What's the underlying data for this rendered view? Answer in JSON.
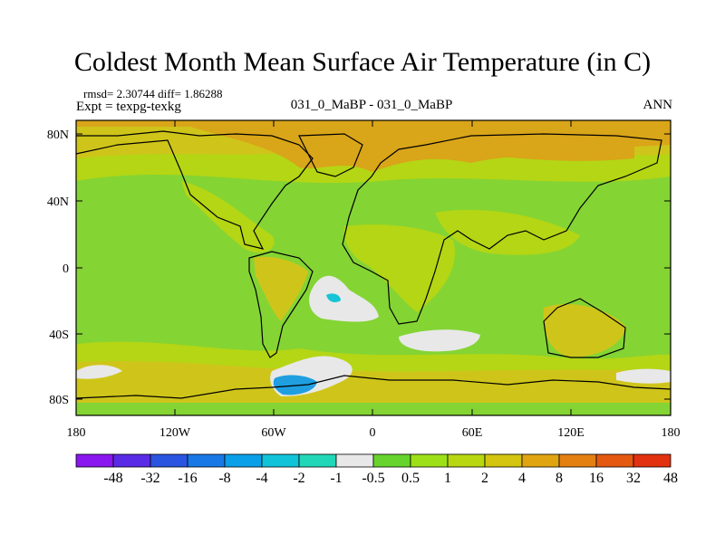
{
  "header": {
    "title": "Coldest Month Mean Surface Air Temperature (in C)",
    "stats": "rmsd= 2.30744 diff= 1.86288",
    "experiment": "Expt = texpg-texkg",
    "comparison": "031_0_MaBP - 031_0_MaBP",
    "season": "ANN"
  },
  "axes": {
    "lat_labels": [
      "80N",
      "40N",
      "0",
      "40S",
      "80S"
    ],
    "lon_labels": [
      "180",
      "120W",
      "60W",
      "0",
      "60E",
      "120E",
      "180"
    ]
  },
  "colorbar": {
    "labels": [
      "-48",
      "-32",
      "-16",
      "-8",
      "-4",
      "-2",
      "-1",
      "-0.5",
      "0.5",
      "1",
      "2",
      "4",
      "8",
      "16",
      "32",
      "48"
    ],
    "colors": [
      "#8a17ee",
      "#5a2be6",
      "#2a55e0",
      "#1878e6",
      "#0aa0e8",
      "#11c3d8",
      "#20d8b8",
      "#e8e8e8",
      "#66d42c",
      "#9ee017",
      "#b8d70e",
      "#d2c40f",
      "#e0a410",
      "#e48010",
      "#e45810",
      "#e23110"
    ]
  },
  "map_colors": {
    "ocean": "#84d434",
    "warm": "#b4d614",
    "warmer": "#cfc51a",
    "hot": "#d9a519",
    "neutral": "#e8e8e8",
    "cold": "#1f9fe0",
    "coastline": "#000000"
  }
}
